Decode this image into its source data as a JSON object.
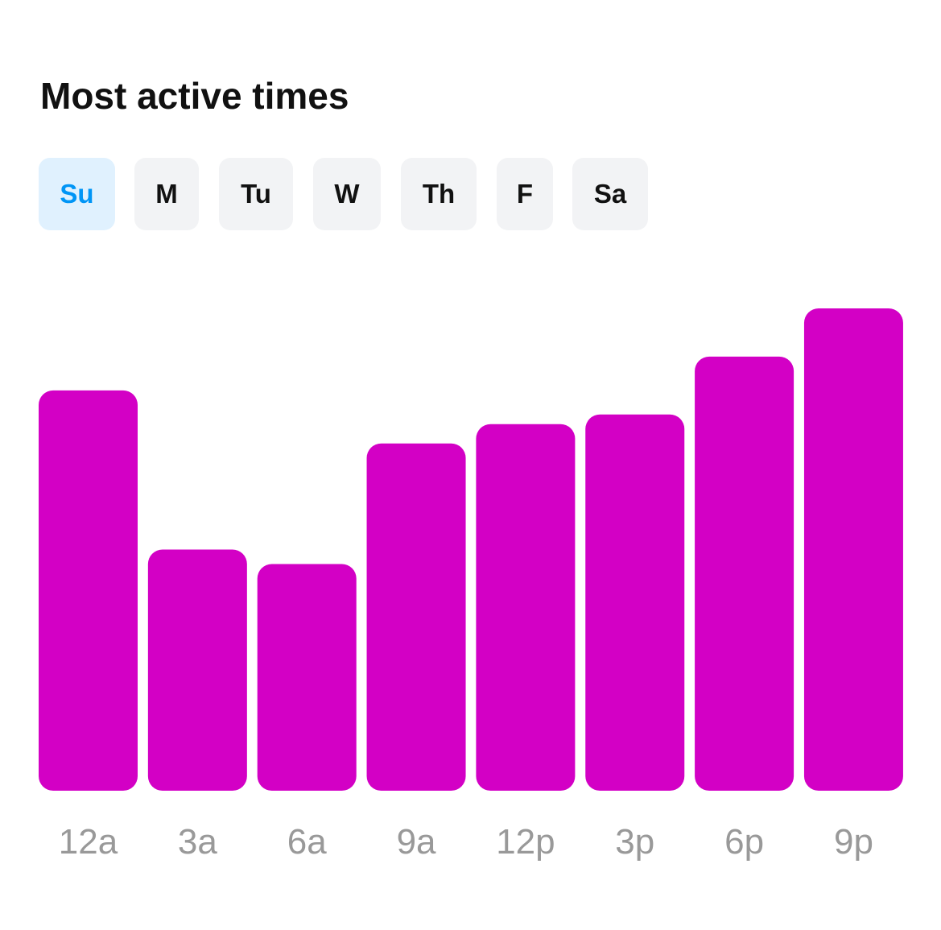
{
  "title": "Most active times",
  "days": [
    {
      "label": "Su",
      "selected": true
    },
    {
      "label": "M",
      "selected": false
    },
    {
      "label": "Tu",
      "selected": false
    },
    {
      "label": "W",
      "selected": false
    },
    {
      "label": "Th",
      "selected": false
    },
    {
      "label": "F",
      "selected": false
    },
    {
      "label": "Sa",
      "selected": false
    }
  ],
  "colors": {
    "bar": "#D300C5",
    "selected_bg": "#E0F1FE",
    "selected_text": "#0095F6",
    "day_bg": "#F2F3F5",
    "tick_label": "#999999"
  },
  "chart_data": {
    "type": "bar",
    "categories": [
      "12a",
      "3a",
      "6a",
      "9a",
      "12p",
      "3p",
      "6p",
      "9p"
    ],
    "values": [
      83,
      50,
      47,
      72,
      76,
      78,
      90,
      100
    ],
    "title": "",
    "xlabel": "",
    "ylabel": "",
    "ylim": [
      0,
      100
    ],
    "grid": false
  }
}
